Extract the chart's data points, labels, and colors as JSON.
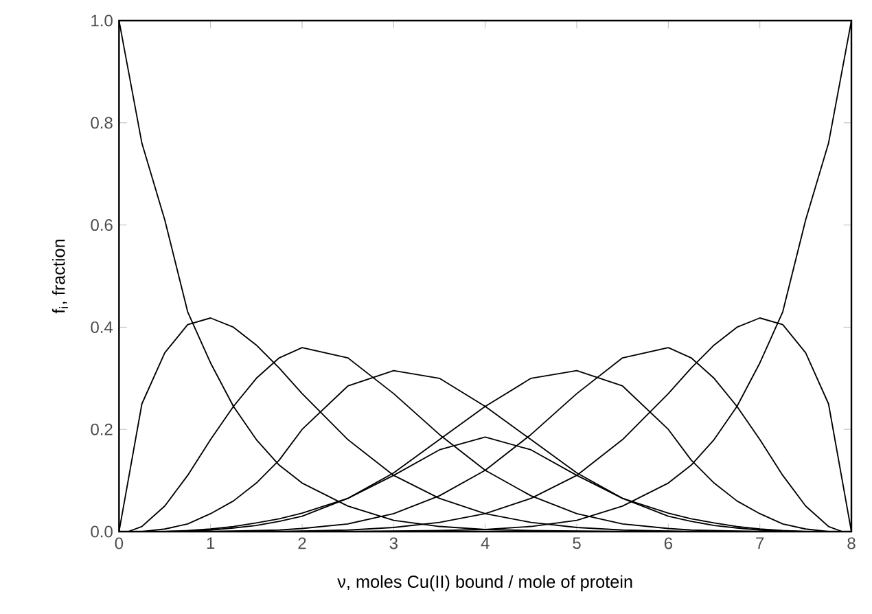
{
  "chart_data": {
    "type": "line",
    "xlabel": "ν, moles Cu(II) bound / mole of protein",
    "ylabel": "f$_{i}$, fraction",
    "series": [
      {
        "color": "#000000",
        "x": [
          0,
          0.25,
          0.5,
          0.75,
          1,
          1.25,
          1.5,
          1.75,
          2,
          2.5,
          3,
          3.5,
          4,
          4.5,
          5,
          5.5
        ],
        "values": [
          1.0,
          0.76,
          0.61,
          0.43,
          0.33,
          0.245,
          0.18,
          0.13,
          0.095,
          0.05,
          0.022,
          0.01,
          0.004,
          0.002,
          0.001,
          0
        ]
      },
      {
        "color": "#000000",
        "x": [
          0,
          0.25,
          0.5,
          0.75,
          1,
          1.25,
          1.5,
          1.75,
          2,
          2.5,
          3,
          3.5,
          4,
          4.5,
          5,
          5.5,
          6,
          6.25
        ],
        "values": [
          0,
          0.25,
          0.35,
          0.405,
          0.418,
          0.4,
          0.365,
          0.32,
          0.27,
          0.18,
          0.11,
          0.065,
          0.035,
          0.018,
          0.008,
          0.003,
          0.001,
          0
        ]
      },
      {
        "color": "#000000",
        "x": [
          0.1,
          0.25,
          0.5,
          0.75,
          1,
          1.25,
          1.5,
          1.75,
          2,
          2.5,
          3,
          3.5,
          4,
          4.5,
          5,
          5.5,
          6,
          6.25,
          6.5,
          6.75,
          7
        ],
        "values": [
          0,
          0.01,
          0.05,
          0.11,
          0.18,
          0.245,
          0.3,
          0.34,
          0.36,
          0.34,
          0.27,
          0.19,
          0.12,
          0.07,
          0.035,
          0.015,
          0.006,
          0.003,
          0.002,
          0.001,
          0
        ]
      },
      {
        "color": "#000000",
        "x": [
          0.25,
          0.5,
          0.75,
          1,
          1.25,
          1.5,
          1.75,
          2,
          2.5,
          3,
          3.5,
          4,
          4.5,
          5,
          5.5,
          6,
          6.25,
          6.5,
          6.75,
          7,
          7.25,
          7.5
        ],
        "values": [
          0,
          0.005,
          0.015,
          0.035,
          0.06,
          0.095,
          0.14,
          0.2,
          0.285,
          0.315,
          0.3,
          0.245,
          0.18,
          0.115,
          0.065,
          0.03,
          0.02,
          0.012,
          0.007,
          0.003,
          0.001,
          0
        ]
      },
      {
        "color": "#000000",
        "x": [
          0.5,
          0.75,
          1,
          1.25,
          1.5,
          1.75,
          2,
          2.5,
          3,
          3.5,
          4,
          4.5,
          5,
          5.5,
          6,
          6.25,
          6.5,
          6.75,
          7,
          7.25,
          7.5
        ],
        "values": [
          0,
          0.002,
          0.005,
          0.01,
          0.017,
          0.025,
          0.036,
          0.065,
          0.11,
          0.16,
          0.185,
          0.16,
          0.11,
          0.065,
          0.036,
          0.025,
          0.017,
          0.01,
          0.005,
          0.002,
          0
        ]
      },
      {
        "color": "#000000",
        "x": [
          0.5,
          0.75,
          1,
          1.25,
          1.5,
          1.75,
          2,
          2.5,
          3,
          3.5,
          4,
          4.5,
          5,
          5.5,
          6,
          6.25,
          6.5,
          6.75,
          7,
          7.25,
          7.5,
          7.75
        ],
        "values": [
          0,
          0.001,
          0.003,
          0.007,
          0.012,
          0.02,
          0.03,
          0.065,
          0.115,
          0.18,
          0.245,
          0.3,
          0.315,
          0.285,
          0.2,
          0.14,
          0.095,
          0.06,
          0.035,
          0.015,
          0.005,
          0
        ]
      },
      {
        "color": "#000000",
        "x": [
          1,
          1.25,
          1.5,
          1.75,
          2,
          2.5,
          3,
          3.5,
          4,
          4.5,
          5,
          5.5,
          6,
          6.25,
          6.5,
          6.75,
          7,
          7.25,
          7.5,
          7.75,
          7.9
        ],
        "values": [
          0,
          0.001,
          0.002,
          0.003,
          0.006,
          0.015,
          0.035,
          0.07,
          0.12,
          0.19,
          0.27,
          0.34,
          0.36,
          0.34,
          0.3,
          0.245,
          0.18,
          0.11,
          0.05,
          0.01,
          0
        ]
      },
      {
        "color": "#000000",
        "x": [
          1.75,
          2,
          2.5,
          3,
          3.5,
          4,
          4.5,
          5,
          5.5,
          6,
          6.25,
          6.5,
          6.75,
          7,
          7.25,
          7.5,
          7.75,
          8
        ],
        "values": [
          0,
          0.001,
          0.003,
          0.008,
          0.018,
          0.035,
          0.065,
          0.11,
          0.18,
          0.27,
          0.32,
          0.365,
          0.4,
          0.418,
          0.405,
          0.35,
          0.25,
          0
        ]
      },
      {
        "color": "#000000",
        "x": [
          2.5,
          3,
          3.5,
          4,
          4.5,
          5,
          5.5,
          6,
          6.25,
          6.5,
          6.75,
          7,
          7.25,
          7.5,
          7.75,
          8
        ],
        "values": [
          0,
          0.001,
          0.002,
          0.004,
          0.01,
          0.022,
          0.05,
          0.095,
          0.13,
          0.18,
          0.245,
          0.33,
          0.43,
          0.61,
          0.76,
          1.0
        ]
      }
    ],
    "xlim": [
      0,
      8
    ],
    "ylim": [
      0,
      1
    ],
    "xticks": [
      0,
      1,
      2,
      3,
      4,
      5,
      6,
      7,
      8
    ],
    "yticks": [
      {
        "value": 0,
        "label": "0.0"
      },
      {
        "value": 0.2,
        "label": "0.2"
      },
      {
        "value": 0.4,
        "label": "0.4"
      },
      {
        "value": 0.6,
        "label": "0.6"
      },
      {
        "value": 0.8,
        "label": "0.8"
      },
      {
        "value": 1,
        "label": "1.0"
      }
    ],
    "grid": false,
    "legend": false,
    "marker": "none",
    "line_style": "solid"
  }
}
